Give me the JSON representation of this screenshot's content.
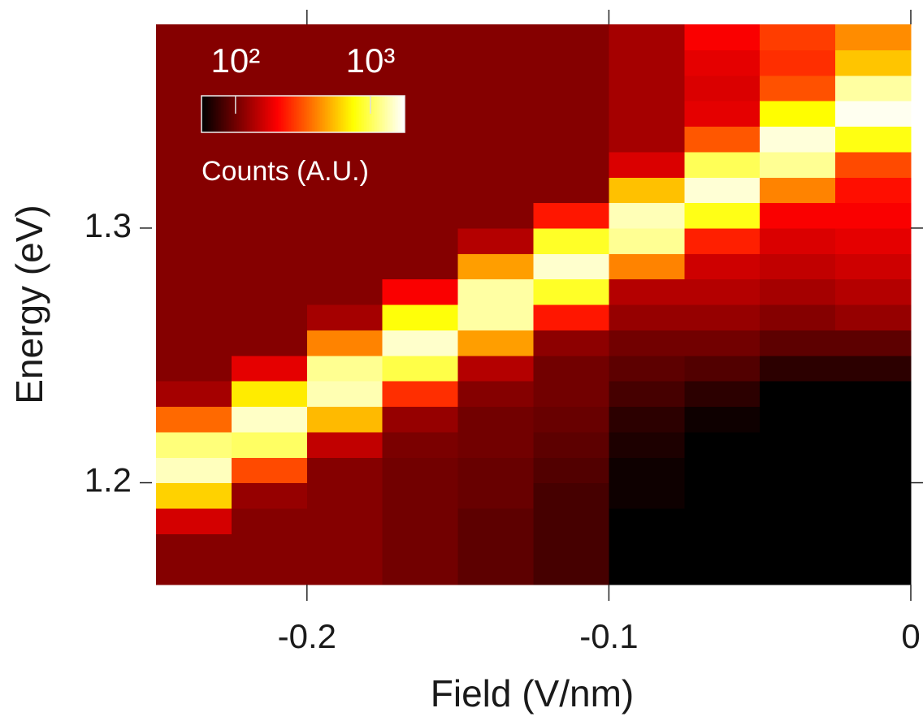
{
  "chart_data": {
    "type": "heatmap",
    "x_label": "Field (V/nm)",
    "y_label": "Energy (eV)",
    "xlim": [
      -0.25,
      0
    ],
    "ylim": [
      1.16,
      1.38
    ],
    "xticks": [
      -0.2,
      -0.1,
      0
    ],
    "yticks": [
      1.2,
      1.3
    ],
    "colorscale": "hot",
    "color_log": true,
    "clim": [
      56,
      1790
    ],
    "colorbar_label": "Counts (A.U.)",
    "colorbar_ticks": [
      {
        "value": 100,
        "label": "10²"
      },
      {
        "value": 1000,
        "label": "10³"
      }
    ],
    "x": [
      -0.2375,
      -0.2125,
      -0.1875,
      -0.1625,
      -0.1375,
      -0.1125,
      -0.0875,
      -0.0625,
      -0.0375,
      -0.0125
    ],
    "y": [
      1.165,
      1.175,
      1.185,
      1.195,
      1.205,
      1.215,
      1.225,
      1.235,
      1.245,
      1.255,
      1.265,
      1.275,
      1.285,
      1.295,
      1.305,
      1.315,
      1.325,
      1.335,
      1.345,
      1.355,
      1.365,
      1.375
    ],
    "z": [
      [
        110,
        110,
        110,
        100,
        90,
        80,
        55,
        45,
        35,
        30
      ],
      [
        110,
        110,
        110,
        100,
        90,
        80,
        55,
        45,
        35,
        30
      ],
      [
        165,
        110,
        110,
        100,
        90,
        80,
        55,
        45,
        35,
        30
      ],
      [
        600,
        120,
        110,
        100,
        95,
        80,
        60,
        45,
        36,
        30
      ],
      [
        1430,
        300,
        110,
        100,
        95,
        85,
        60,
        50,
        38,
        32
      ],
      [
        1140,
        1053,
        150,
        105,
        100,
        90,
        65,
        55,
        40,
        35
      ],
      [
        350,
        1476,
        530,
        120,
        100,
        95,
        70,
        60,
        45,
        40
      ],
      [
        130,
        685,
        1380,
        260,
        110,
        100,
        80,
        70,
        55,
        50
      ],
      [
        110,
        180,
        1230,
        960,
        140,
        100,
        90,
        85,
        70,
        70
      ],
      [
        110,
        110,
        400,
        1500,
        460,
        115,
        100,
        100,
        90,
        90
      ],
      [
        110,
        110,
        130,
        775,
        1310,
        230,
        120,
        120,
        110,
        120
      ],
      [
        110,
        110,
        110,
        200,
        1310,
        860,
        140,
        140,
        130,
        140
      ],
      [
        110,
        110,
        110,
        110,
        460,
        1510,
        400,
        160,
        150,
        160
      ],
      [
        110,
        110,
        110,
        110,
        140,
        860,
        1240,
        240,
        170,
        180
      ],
      [
        110,
        110,
        110,
        110,
        110,
        230,
        1400,
        810,
        200,
        200
      ],
      [
        110,
        110,
        110,
        110,
        110,
        110,
        550,
        1550,
        400,
        220
      ],
      [
        110,
        110,
        110,
        110,
        110,
        110,
        170,
        1010,
        1240,
        300
      ],
      [
        110,
        110,
        110,
        110,
        110,
        110,
        130,
        320,
        1580,
        800
      ],
      [
        110,
        110,
        110,
        110,
        110,
        110,
        130,
        180,
        750,
        1700
      ],
      [
        110,
        110,
        110,
        110,
        110,
        110,
        130,
        170,
        310,
        1300
      ],
      [
        110,
        110,
        110,
        110,
        110,
        110,
        130,
        180,
        260,
        560
      ],
      [
        110,
        110,
        110,
        110,
        110,
        110,
        130,
        200,
        280,
        420
      ]
    ]
  }
}
